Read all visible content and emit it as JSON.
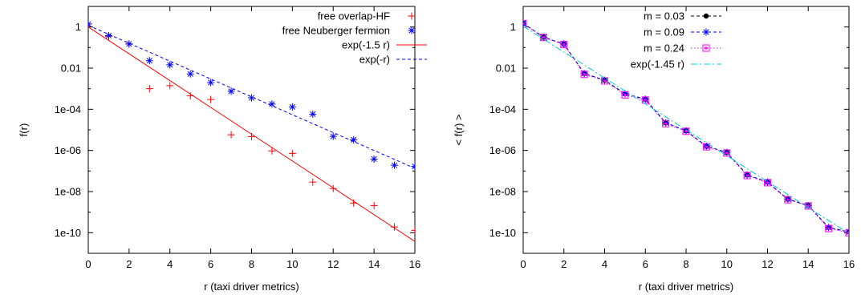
{
  "chart_data": [
    {
      "type": "scatter",
      "xlabel": "r   (taxi driver metrics)",
      "ylabel": "f(r)",
      "xlim": [
        0,
        16
      ],
      "ylim": [
        1e-11,
        10
      ],
      "yscale": "log",
      "xticks": [
        0,
        2,
        4,
        6,
        8,
        10,
        12,
        14,
        16
      ],
      "yticks": [
        1,
        0.01,
        0.0001,
        1e-06,
        1e-08,
        1e-10
      ],
      "yticklabels": [
        "1",
        "0.01",
        "1e-04",
        "1e-06",
        "1e-08",
        "1e-10"
      ],
      "legend_position": "top-right",
      "series": [
        {
          "name": "free overlap-HF",
          "kind": "points",
          "marker": "plus",
          "color": "#ff0000",
          "x": [
            0,
            1,
            2,
            3,
            4,
            5,
            6,
            7,
            8,
            9,
            10,
            11,
            12,
            13,
            14,
            15,
            16
          ],
          "y": [
            1.4,
            0.35,
            0.15,
            0.001,
            0.0014,
            0.00045,
            0.0003,
            5.8e-06,
            4.7e-06,
            9.5e-07,
            7.2e-07,
            2.9e-08,
            1.4e-08,
            2.8e-09,
            2.1e-09,
            1.9e-10,
            1.3e-10
          ]
        },
        {
          "name": "free Neuberger fermion",
          "kind": "points",
          "marker": "star",
          "color": "#0000ff",
          "x": [
            0,
            1,
            2,
            3,
            4,
            5,
            6,
            7,
            8,
            9,
            10,
            11,
            12,
            13,
            14,
            15,
            16
          ],
          "y": [
            1.4,
            0.38,
            0.15,
            0.023,
            0.0145,
            0.0052,
            0.002,
            0.00075,
            0.00036,
            0.00018,
            0.00013,
            5.8e-05,
            4.8e-06,
            3.3e-06,
            3.8e-07,
            1.9e-07,
            1.7e-07
          ]
        },
        {
          "name": "exp(-1.5 r)",
          "kind": "line",
          "style": "solid",
          "color": "#ff0000",
          "coef": -1.5,
          "amp": 1
        },
        {
          "name": "exp(-r)",
          "kind": "line",
          "style": "dashed",
          "color": "#0000ff",
          "coef": -1.0,
          "amp": 1.2
        }
      ]
    },
    {
      "type": "scatter",
      "xlabel": "r  (taxi driver metrics)",
      "ylabel": "< f(r) >",
      "xlim": [
        0,
        16
      ],
      "ylim": [
        1e-11,
        10
      ],
      "yscale": "log",
      "xticks": [
        0,
        2,
        4,
        6,
        8,
        10,
        12,
        14,
        16
      ],
      "yticks": [
        1,
        0.01,
        0.0001,
        1e-06,
        1e-08,
        1e-10
      ],
      "yticklabels": [
        "1",
        "0.01",
        "1e-04",
        "1e-06",
        "1e-08",
        "1e-10"
      ],
      "legend_position": "top-right",
      "series": [
        {
          "name": "m = 0.03",
          "kind": "linepoints",
          "marker": "circle",
          "style": "dashed",
          "color": "#000000",
          "x": [
            0,
            1,
            2,
            3,
            4,
            5,
            6,
            7,
            8,
            9,
            10,
            11,
            12,
            13,
            14,
            15,
            16
          ],
          "y": [
            1.5,
            0.32,
            0.15,
            0.0055,
            0.0026,
            0.00057,
            0.00031,
            2.2e-05,
            9e-06,
            1.6e-06,
            8e-07,
            6.5e-08,
            2.9e-08,
            4.3e-09,
            2.1e-09,
            1.8e-10,
            1.1e-10
          ]
        },
        {
          "name": "m = 0.09",
          "kind": "linepoints",
          "marker": "star",
          "style": "dashed",
          "color": "#0000ff",
          "x": [
            0,
            1,
            2,
            3,
            4,
            5,
            6,
            7,
            8,
            9,
            10,
            11,
            12,
            13,
            14,
            15,
            16
          ],
          "y": [
            1.5,
            0.32,
            0.15,
            0.0055,
            0.0026,
            0.00057,
            0.00031,
            2.2e-05,
            9e-06,
            1.6e-06,
            8e-07,
            6.5e-08,
            2.9e-08,
            4.3e-09,
            2.1e-09,
            1.8e-10,
            1.1e-10
          ]
        },
        {
          "name": "m = 0.24",
          "kind": "linepoints",
          "marker": "square",
          "style": "dotted",
          "color": "#ff00ff",
          "x": [
            0,
            1,
            2,
            3,
            4,
            5,
            6,
            7,
            8,
            9,
            10,
            11,
            12,
            13,
            14,
            15,
            16
          ],
          "y": [
            1.45,
            0.31,
            0.14,
            0.005,
            0.0024,
            0.0005,
            0.00028,
            2e-05,
            8.5e-06,
            1.5e-06,
            7.5e-07,
            6e-08,
            2.7e-08,
            4e-09,
            2e-09,
            1.6e-10,
            1e-10
          ]
        },
        {
          "name": "exp(-1.45 r)",
          "kind": "line",
          "style": "dashdot",
          "color": "#00cccc",
          "coef": -1.45,
          "amp": 1.1
        }
      ]
    }
  ]
}
